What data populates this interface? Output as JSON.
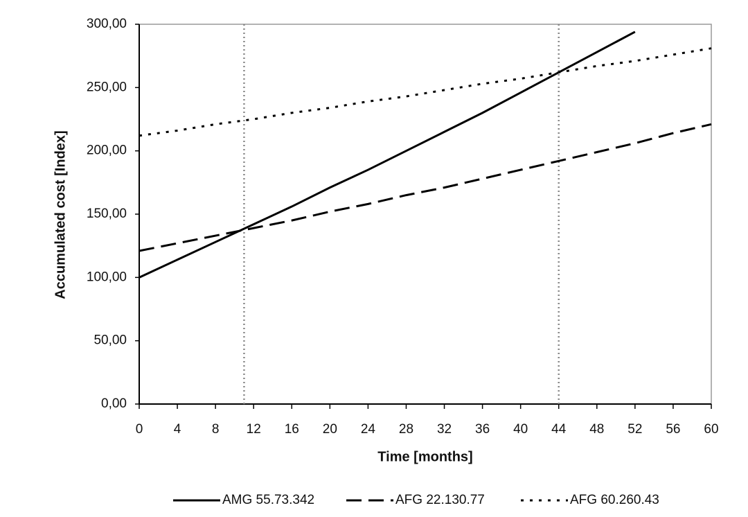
{
  "chart_data": {
    "type": "line",
    "y_label": "Accumulated cost [Index]",
    "x_label": "Time [months]",
    "xlim": [
      0,
      60
    ],
    "xticks": [
      0,
      4,
      8,
      12,
      16,
      20,
      24,
      28,
      32,
      36,
      40,
      44,
      48,
      52,
      56,
      60
    ],
    "ylim": [
      0,
      300
    ],
    "yticks": [
      {
        "value": 0,
        "label": "0,00"
      },
      {
        "value": 50,
        "label": "50,00"
      },
      {
        "value": 100,
        "label": "100,00"
      },
      {
        "value": 150,
        "label": "150,00"
      },
      {
        "value": 200,
        "label": "200,00"
      },
      {
        "value": 250,
        "label": "250,00"
      },
      {
        "value": 300,
        "label": "300,00"
      }
    ],
    "reference_lines_x": [
      11,
      44
    ],
    "legend": "bottom",
    "series": [
      {
        "name": "AMG 55.73.342",
        "color": "#000000",
        "dash": "solid",
        "x": [
          0,
          4,
          8,
          12,
          16,
          20,
          24,
          28,
          32,
          36,
          40,
          44,
          48,
          52
        ],
        "values": [
          100,
          114,
          128,
          142,
          156,
          171,
          185,
          200,
          215,
          230,
          246,
          262,
          278,
          294
        ]
      },
      {
        "name": "AFG 22.130.77",
        "color": "#000000",
        "dash": "dashed",
        "x": [
          0,
          4,
          8,
          12,
          16,
          20,
          24,
          28,
          32,
          36,
          40,
          44,
          48,
          52,
          56,
          60
        ],
        "values": [
          121,
          127,
          133,
          139,
          145,
          152,
          158,
          165,
          171,
          178,
          185,
          192,
          199,
          206,
          214,
          221
        ]
      },
      {
        "name": "AFG 60.260.43",
        "color": "#000000",
        "dash": "dotted",
        "x": [
          0,
          4,
          8,
          12,
          16,
          20,
          24,
          28,
          32,
          36,
          40,
          44,
          48,
          52,
          56,
          60
        ],
        "values": [
          212,
          216,
          221,
          225,
          230,
          234,
          239,
          243,
          248,
          253,
          257,
          262,
          267,
          271,
          276,
          281
        ]
      }
    ]
  }
}
